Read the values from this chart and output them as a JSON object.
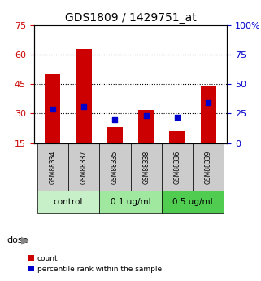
{
  "title": "GDS1809 / 1429751_at",
  "samples": [
    "GSM88334",
    "GSM88337",
    "GSM88335",
    "GSM88338",
    "GSM88336",
    "GSM88339"
  ],
  "bar_values": [
    50,
    63,
    23,
    32,
    21,
    44
  ],
  "dot_values_right": [
    29,
    31,
    20,
    23,
    22,
    34
  ],
  "bar_color": "#cc0000",
  "dot_color": "#0000cc",
  "ylim_left": [
    15,
    75
  ],
  "ylim_right": [
    0,
    100
  ],
  "yticks_left": [
    15,
    30,
    45,
    60,
    75
  ],
  "yticks_right": [
    0,
    25,
    50,
    75,
    100
  ],
  "ytick_labels_right": [
    "0",
    "25",
    "50",
    "75",
    "100%"
  ],
  "groups": [
    {
      "label": "control",
      "indices": [
        0,
        1
      ],
      "color": "#c8f0c8"
    },
    {
      "label": "0.1 ug/ml",
      "indices": [
        2,
        3
      ],
      "color": "#a0e8a0"
    },
    {
      "label": "0.5 ug/ml",
      "indices": [
        4,
        5
      ],
      "color": "#50cc50"
    }
  ],
  "dose_label": "dose",
  "legend_count_label": "count",
  "legend_pct_label": "percentile rank within the sample",
  "background_color": "#ffffff",
  "label_color_left": "#cc0000",
  "label_color_right": "#0000cc",
  "gridline_ticks": [
    30,
    45,
    60
  ],
  "sample_cell_color": "#cccccc"
}
